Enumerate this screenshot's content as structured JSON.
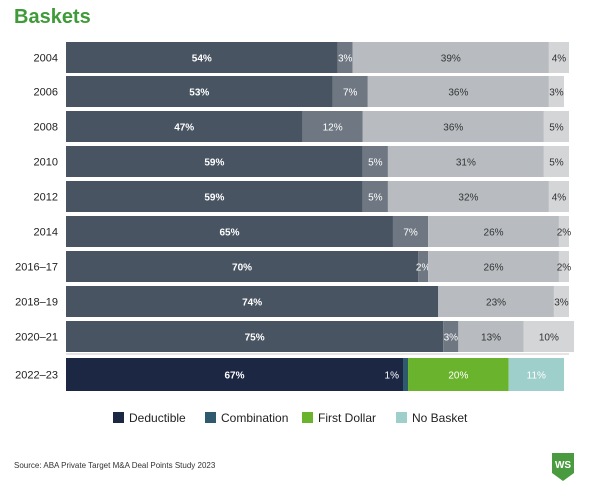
{
  "title": "Baskets",
  "source": "Source: ABA Private Target M&A Deal Points Study 2023",
  "logo": {
    "text": "WS",
    "color": "#4a9a3f"
  },
  "chart_data": {
    "type": "bar",
    "orientation": "horizontal",
    "stacked": true,
    "categories": [
      "2004",
      "2006",
      "2008",
      "2010",
      "2012",
      "2014",
      "2016–17",
      "2018–19",
      "2020–21",
      "2022–23"
    ],
    "series": [
      {
        "name": "Deductible",
        "values": [
          54,
          53,
          47,
          59,
          59,
          65,
          70,
          74,
          75,
          67
        ]
      },
      {
        "name": "Combination",
        "values": [
          3,
          7,
          12,
          5,
          5,
          7,
          2,
          0,
          3,
          1
        ]
      },
      {
        "name": "First Dollar",
        "values": [
          39,
          36,
          36,
          31,
          32,
          26,
          26,
          23,
          13,
          20
        ]
      },
      {
        "name": "No Basket",
        "values": [
          4,
          3,
          5,
          5,
          4,
          2,
          2,
          3,
          10,
          11
        ]
      }
    ],
    "labels": [
      [
        "54%",
        "3%",
        "39%",
        "4%"
      ],
      [
        "53%",
        "7%",
        "36%",
        "3%"
      ],
      [
        "47%",
        "12%",
        "36%",
        "5%"
      ],
      [
        "59%",
        "5%",
        "31%",
        "5%"
      ],
      [
        "59%",
        "5%",
        "32%",
        "4%"
      ],
      [
        "65%",
        "7%",
        "26%",
        "2%"
      ],
      [
        "70%",
        "2%",
        "26%",
        "2%"
      ],
      [
        "74%",
        "",
        "23%",
        "3%"
      ],
      [
        "75%",
        "3%",
        "13%",
        "10%"
      ],
      [
        "67%",
        "1%",
        "20%",
        "11%"
      ]
    ],
    "highlight_category": "2022–23",
    "legend_position": "bottom",
    "colors": {
      "legend": [
        "#1c2744",
        "#2f5a6e",
        "#6ab42d",
        "#9ecfcb"
      ],
      "historical": [
        "#485462",
        "#6e7782",
        "#b8bcc0",
        "#d3d5d7"
      ],
      "highlight": [
        "#1c2744",
        "#2f5a6e",
        "#6ab42d",
        "#9ecfcb"
      ]
    },
    "xlim": [
      0,
      100
    ],
    "grid": false
  }
}
